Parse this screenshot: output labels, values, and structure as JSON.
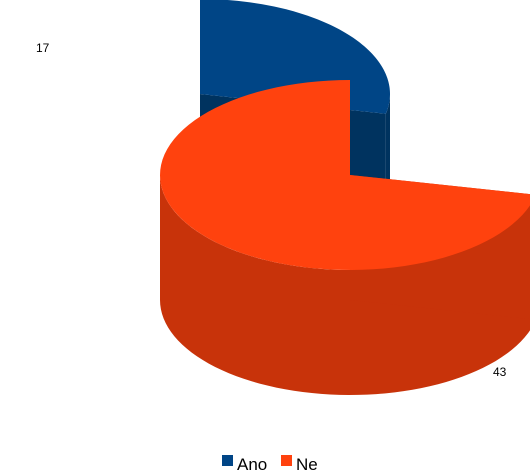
{
  "chart_data": {
    "type": "pie",
    "style": "3d-exploded",
    "categories": [
      "Ano",
      "Ne"
    ],
    "values": [
      17,
      43
    ],
    "data_labels": [
      "17",
      "43"
    ],
    "colors": {
      "Ano": {
        "top": "#004586",
        "side": "#00335f"
      },
      "Ne": {
        "top": "#ff420e",
        "side": "#c8330a"
      }
    },
    "legend": {
      "position": "bottom",
      "items": [
        {
          "label": "Ano",
          "color": "#004586"
        },
        {
          "label": "Ne",
          "color": "#ff420e"
        }
      ]
    }
  }
}
